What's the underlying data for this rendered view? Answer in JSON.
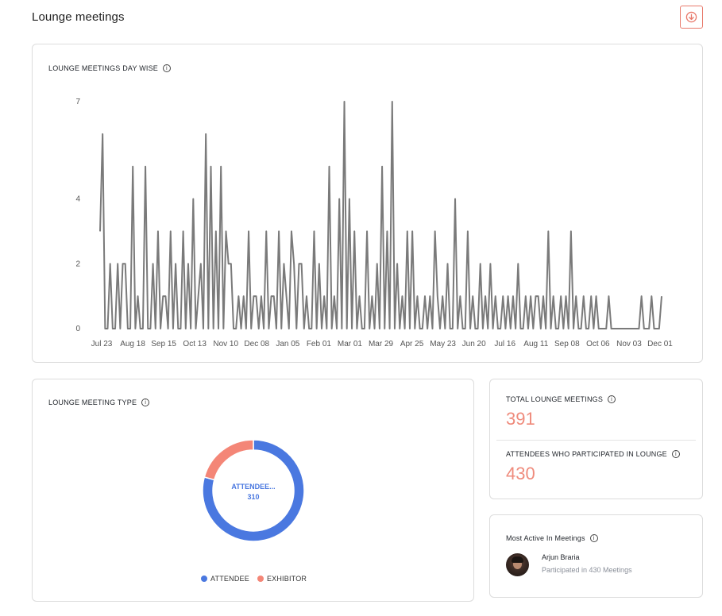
{
  "page": {
    "title": "Lounge meetings",
    "download_icon": "download-circle-icon",
    "accent_color": "#e8796b"
  },
  "day_wise": {
    "title": "LOUNGE MEETINGS DAY WISE",
    "info_icon": "info-icon"
  },
  "meeting_type": {
    "title": "LOUNGE MEETING TYPE",
    "info_icon": "info-icon",
    "center_label": "ATTENDEE...",
    "center_value": "310",
    "legend": [
      {
        "name": "ATTENDEE",
        "color": "#4a78e0"
      },
      {
        "name": "EXHIBITOR",
        "color": "#f48677"
      }
    ]
  },
  "stats": {
    "total_label": "TOTAL LOUNGE MEETINGS",
    "total_value": "391",
    "attendees_label": "ATTENDEES WHO PARTICIPATED IN LOUNGE",
    "attendees_value": "430",
    "value_color": "#ef8b7c"
  },
  "most_active": {
    "title": "Most Active In Meetings",
    "name": "Arjun Braria",
    "subtitle": "Participated in 430 Meetings"
  },
  "chart_data": [
    {
      "type": "line",
      "title": "LOUNGE MEETINGS DAY WISE",
      "xlabel": "",
      "ylabel": "",
      "y_ticks": [
        0,
        2,
        4,
        7
      ],
      "ylim": [
        0,
        7
      ],
      "x_tick_labels": [
        "Jul 23",
        "Aug 18",
        "Sep 15",
        "Oct 13",
        "Nov 10",
        "Dec 08",
        "Jan 05",
        "Feb 01",
        "Mar 01",
        "Mar 29",
        "Apr 25",
        "May 23",
        "Jun 20",
        "Jul 16",
        "Aug 11",
        "Sep 08",
        "Oct 06",
        "Nov 03",
        "Dec 01"
      ],
      "grid": false,
      "line_color": "#7a7a7a",
      "values": [
        3,
        6,
        0,
        0,
        2,
        0,
        0,
        2,
        0,
        2,
        2,
        0,
        0,
        5,
        0,
        1,
        0,
        0,
        5,
        0,
        0,
        2,
        0,
        3,
        0,
        1,
        1,
        0,
        3,
        0,
        2,
        0,
        0,
        3,
        0,
        2,
        0,
        4,
        0,
        1,
        2,
        0,
        6,
        0,
        5,
        0,
        3,
        0,
        5,
        0,
        3,
        2,
        2,
        0,
        0,
        1,
        0,
        1,
        0,
        3,
        0,
        1,
        1,
        0,
        1,
        0,
        3,
        0,
        1,
        1,
        0,
        3,
        0,
        2,
        1,
        0,
        3,
        2,
        0,
        2,
        2,
        0,
        1,
        0,
        0,
        3,
        0,
        2,
        0,
        1,
        0,
        5,
        0,
        1,
        0,
        4,
        0,
        7,
        0,
        4,
        0,
        3,
        0,
        1,
        0,
        0,
        3,
        0,
        1,
        0,
        2,
        0,
        5,
        0,
        3,
        0,
        7,
        0,
        2,
        0,
        1,
        0,
        3,
        0,
        3,
        0,
        1,
        0,
        0,
        1,
        0,
        1,
        0,
        3,
        1,
        0,
        1,
        0,
        2,
        0,
        0,
        4,
        0,
        1,
        0,
        0,
        3,
        0,
        1,
        0,
        0,
        2,
        0,
        1,
        0,
        2,
        0,
        1,
        0,
        0,
        1,
        0,
        1,
        0,
        1,
        0,
        2,
        0,
        0,
        1,
        0,
        1,
        0,
        1,
        1,
        0,
        1,
        0,
        3,
        0,
        1,
        0,
        0,
        1,
        0,
        1,
        0,
        3,
        0,
        1,
        0,
        0,
        1,
        0,
        0,
        1,
        0,
        1,
        0,
        0,
        0,
        0,
        1,
        0,
        0,
        0,
        0,
        0,
        0,
        0,
        0,
        0,
        0,
        0,
        0,
        1,
        0,
        0,
        0,
        1,
        0,
        0,
        0,
        1
      ]
    },
    {
      "type": "pie",
      "title": "LOUNGE MEETING TYPE",
      "series": [
        {
          "name": "ATTENDEE",
          "value": 310,
          "color": "#4a78e0"
        },
        {
          "name": "EXHIBITOR",
          "value": 81,
          "color": "#f48677"
        }
      ],
      "legend_position": "bottom"
    }
  ]
}
